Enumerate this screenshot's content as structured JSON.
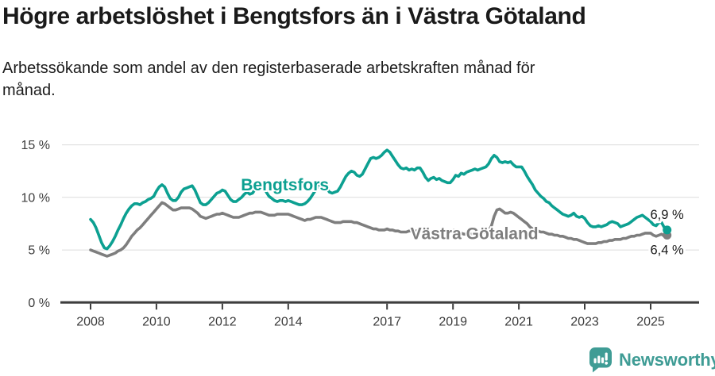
{
  "chart_data": {
    "type": "line",
    "title": "Högre arbetslöshet i Bengtsfors än i Västra Götaland",
    "subtitle": "Arbetssökande som andel av den registerbaserade arbetskraften månad för månad.",
    "subtitle_line1": "Arbetssökande som andel av den registerbaserade arbetskraften månad för",
    "subtitle_line2": "månad.",
    "unit": "% av den registerbaserade arbetskraften",
    "x_resolution": "monthly",
    "x_start_year": 2008,
    "ylim": [
      0,
      16.5
    ],
    "grid": "horizontal",
    "yticks": [
      0,
      5,
      10,
      15
    ],
    "ytick_labels": [
      "0 %",
      "5 %",
      "10 %",
      "15 %"
    ],
    "xticks": [
      2008,
      2010,
      2012,
      2014,
      2017,
      2019,
      2021,
      2023,
      2025
    ],
    "xtick_labels": [
      "2008",
      "2010",
      "2012",
      "2014",
      "2017",
      "2019",
      "2021",
      "2023",
      "2025"
    ],
    "series": [
      {
        "name": "Bengtsfors",
        "color": "#0CA091",
        "end_label": "6,9 %",
        "final_value": 6.9,
        "label_anchor": {
          "year": 2013.9,
          "value": 11.2
        },
        "values": [
          7.9,
          7.6,
          7.1,
          6.4,
          5.7,
          5.2,
          5.1,
          5.4,
          5.8,
          6.3,
          6.9,
          7.4,
          8.0,
          8.5,
          8.9,
          9.2,
          9.4,
          9.4,
          9.3,
          9.5,
          9.6,
          9.8,
          9.9,
          10.1,
          10.6,
          11.0,
          11.2,
          11.0,
          10.4,
          9.9,
          9.7,
          9.7,
          10.0,
          10.5,
          10.8,
          10.9,
          11.0,
          11.1,
          10.7,
          10.1,
          9.5,
          9.3,
          9.3,
          9.5,
          9.8,
          10.1,
          10.4,
          10.5,
          10.7,
          10.6,
          10.2,
          9.8,
          9.6,
          9.6,
          9.8,
          10.0,
          10.3,
          10.5,
          10.3,
          10.4,
          10.8,
          11.1,
          11.3,
          11.1,
          10.5,
          10.1,
          9.9,
          9.7,
          9.6,
          9.7,
          9.7,
          9.6,
          9.7,
          9.6,
          9.5,
          9.4,
          9.3,
          9.3,
          9.4,
          9.6,
          9.9,
          10.3,
          10.7,
          11.1,
          11.3,
          11.2,
          10.9,
          10.5,
          10.4,
          10.5,
          10.6,
          11.0,
          11.5,
          12.0,
          12.3,
          12.5,
          12.4,
          12.1,
          12.0,
          12.2,
          12.7,
          13.2,
          13.7,
          13.8,
          13.7,
          13.8,
          14.0,
          14.3,
          14.5,
          14.3,
          13.9,
          13.5,
          13.1,
          12.8,
          12.7,
          12.8,
          12.6,
          12.7,
          12.6,
          12.8,
          12.8,
          12.4,
          11.9,
          11.6,
          11.8,
          11.9,
          11.7,
          11.8,
          11.6,
          11.5,
          11.4,
          11.4,
          11.7,
          12.1,
          12.0,
          12.3,
          12.2,
          12.4,
          12.5,
          12.6,
          12.7,
          12.6,
          12.7,
          12.8,
          12.9,
          13.2,
          13.7,
          14.0,
          13.8,
          13.4,
          13.3,
          13.4,
          13.3,
          13.4,
          13.1,
          12.9,
          12.9,
          12.9,
          12.5,
          12.0,
          11.6,
          11.2,
          10.7,
          10.4,
          10.1,
          9.9,
          9.6,
          9.5,
          9.2,
          9.0,
          8.8,
          8.6,
          8.4,
          8.3,
          8.2,
          8.3,
          8.5,
          8.2,
          8.1,
          8.2,
          8.0,
          7.6,
          7.3,
          7.2,
          7.2,
          7.3,
          7.2,
          7.3,
          7.4,
          7.6,
          7.7,
          7.6,
          7.5,
          7.2,
          7.3,
          7.4,
          7.5,
          7.7,
          7.9,
          8.1,
          8.2,
          8.3,
          8.1,
          7.9,
          7.7,
          7.4,
          7.3,
          7.6,
          7.6,
          7.1,
          6.9
        ]
      },
      {
        "name": "Västra Götaland",
        "color": "#7E7E7E",
        "end_label": "6,4 %",
        "final_value": 6.4,
        "label_anchor": {
          "year": 2019.65,
          "value": 6.55
        },
        "values": [
          5.0,
          4.9,
          4.8,
          4.7,
          4.6,
          4.5,
          4.4,
          4.5,
          4.6,
          4.7,
          4.9,
          5.0,
          5.2,
          5.5,
          5.9,
          6.3,
          6.6,
          6.9,
          7.1,
          7.4,
          7.7,
          8.0,
          8.3,
          8.6,
          8.9,
          9.2,
          9.5,
          9.4,
          9.2,
          9.0,
          8.8,
          8.8,
          8.9,
          9.0,
          9.0,
          9.0,
          9.0,
          8.9,
          8.7,
          8.5,
          8.2,
          8.1,
          8.0,
          8.1,
          8.2,
          8.3,
          8.4,
          8.4,
          8.5,
          8.4,
          8.3,
          8.2,
          8.1,
          8.1,
          8.1,
          8.2,
          8.3,
          8.4,
          8.5,
          8.5,
          8.6,
          8.6,
          8.6,
          8.5,
          8.4,
          8.3,
          8.3,
          8.3,
          8.4,
          8.4,
          8.4,
          8.4,
          8.4,
          8.3,
          8.2,
          8.1,
          8.0,
          7.9,
          7.8,
          7.9,
          7.9,
          8.0,
          8.1,
          8.1,
          8.1,
          8.0,
          7.9,
          7.8,
          7.7,
          7.6,
          7.6,
          7.6,
          7.7,
          7.7,
          7.7,
          7.7,
          7.6,
          7.6,
          7.5,
          7.4,
          7.3,
          7.2,
          7.1,
          7.0,
          7.0,
          6.9,
          6.9,
          6.9,
          7.0,
          6.9,
          6.9,
          6.8,
          6.8,
          6.7,
          6.7,
          6.7,
          6.8,
          6.8,
          6.8,
          6.8,
          6.8,
          6.8,
          6.7,
          6.6,
          6.6,
          6.5,
          6.5,
          6.6,
          6.6,
          6.7,
          6.8,
          6.8,
          6.9,
          6.8,
          6.7,
          6.6,
          6.5,
          6.5,
          6.5,
          6.5,
          6.6,
          6.6,
          6.7,
          6.7,
          6.7,
          6.8,
          7.3,
          8.2,
          8.8,
          8.9,
          8.7,
          8.5,
          8.5,
          8.6,
          8.5,
          8.3,
          8.1,
          7.9,
          7.7,
          7.5,
          7.2,
          7.0,
          6.9,
          6.8,
          6.7,
          6.7,
          6.6,
          6.5,
          6.5,
          6.4,
          6.4,
          6.3,
          6.3,
          6.2,
          6.1,
          6.1,
          6.0,
          6.0,
          5.9,
          5.8,
          5.7,
          5.6,
          5.6,
          5.6,
          5.6,
          5.7,
          5.7,
          5.8,
          5.8,
          5.9,
          5.9,
          6.0,
          6.0,
          6.0,
          6.1,
          6.1,
          6.2,
          6.3,
          6.3,
          6.4,
          6.4,
          6.5,
          6.6,
          6.6,
          6.6,
          6.4,
          6.3,
          6.4,
          6.5,
          6.3,
          6.4
        ]
      }
    ]
  },
  "footer": {
    "brand": "Newsworthy",
    "logo_color": "#3F9C95"
  }
}
